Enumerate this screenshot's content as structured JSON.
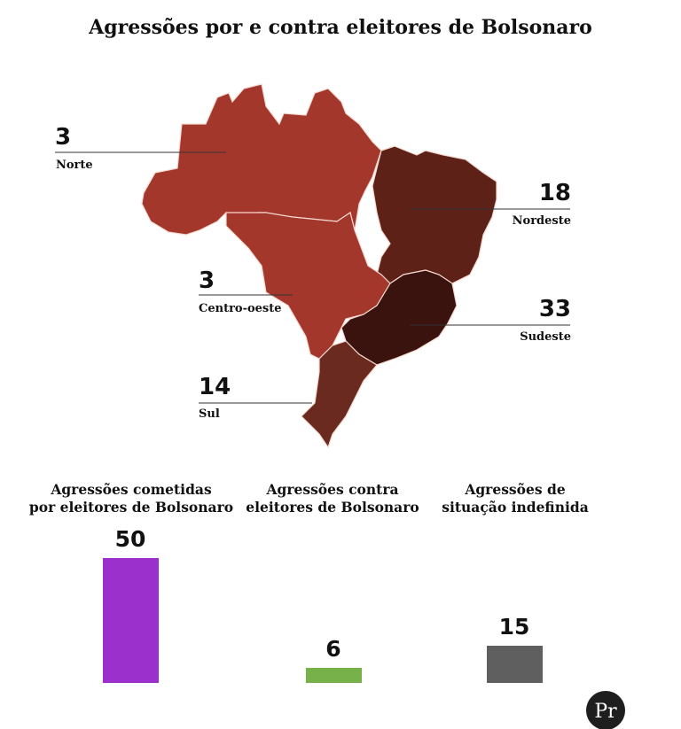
{
  "title": "Agressões por e contra eleitores de Bolsonaro",
  "map": {
    "regions": [
      {
        "name": "Norte",
        "value": 3,
        "color": "#a4372c"
      },
      {
        "name": "Nordeste",
        "value": 18,
        "color": "#5e2118"
      },
      {
        "name": "Centro-oeste",
        "value": 3,
        "color": "#a4372c"
      },
      {
        "name": "Sudeste",
        "value": 33,
        "color": "#3a120e"
      },
      {
        "name": "Sul",
        "value": 14,
        "color": "#6a2a1f"
      }
    ]
  },
  "chart_data": {
    "type": "bar",
    "categories": [
      "Agressões cometidas por eleitores de Bolsonaro",
      "Agressões contra eleitores de Bolsonaro",
      "Agressões de situação indefinida"
    ],
    "category_lines": [
      [
        "Agressões cometidas",
        "por eleitores de Bolsonaro"
      ],
      [
        "Agressões contra",
        "eleitores de Bolsonaro"
      ],
      [
        "Agressões de",
        "situação indefinida"
      ]
    ],
    "values": [
      50,
      6,
      15
    ],
    "value_labels": [
      "50",
      "6",
      "15"
    ],
    "colors": [
      "#9b30cc",
      "#77b14a",
      "#5f5f5f"
    ]
  },
  "logo": "Pr"
}
